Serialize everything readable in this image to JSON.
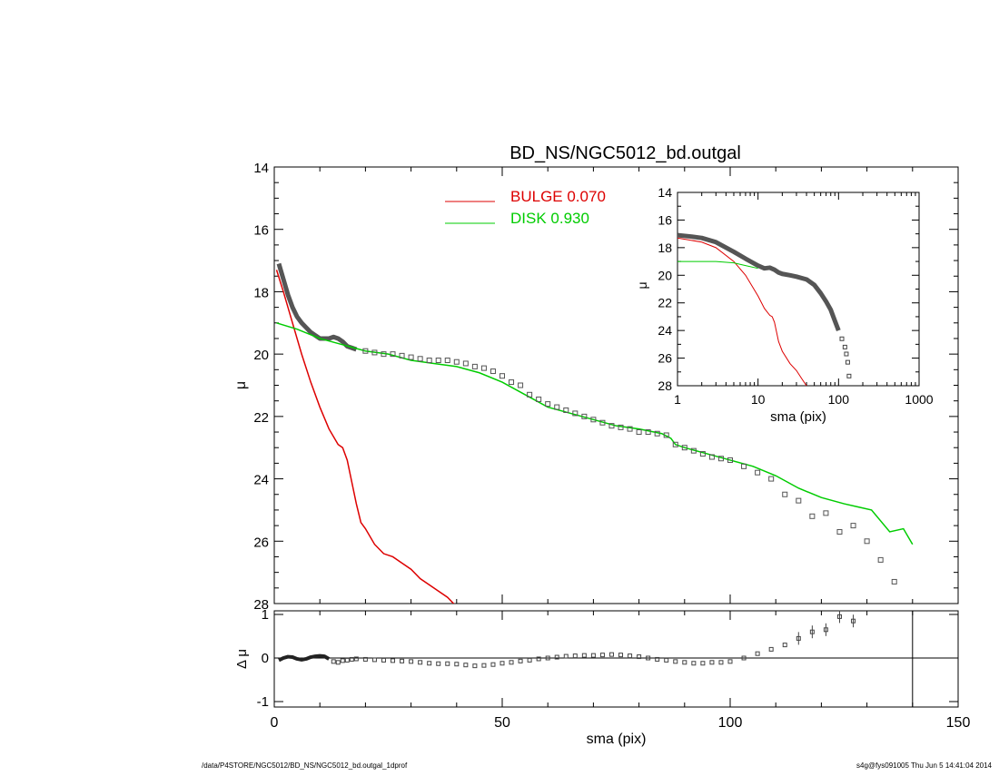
{
  "chart_data": [
    {
      "type": "line",
      "title": "BD_NS/NGC5012_bd.outgal",
      "xlabel": "",
      "ylabel": "μ",
      "xlim": [
        0,
        150
      ],
      "ylim": [
        14,
        28
      ],
      "y_reversed": true,
      "yticks": [
        "14",
        "16",
        "18",
        "20",
        "22",
        "24",
        "26",
        "28"
      ],
      "legend": {
        "placement": "top-center",
        "entries": [
          {
            "label": "BULGE  0.070",
            "color": "#dd0000"
          },
          {
            "label": "DISK  0.930",
            "color": "#00cc00"
          }
        ]
      },
      "series": [
        {
          "name": "BULGE",
          "color": "#dd0000",
          "x": [
            0.5,
            2,
            4,
            6,
            8,
            10,
            12,
            14,
            15,
            16,
            17,
            18,
            19,
            20,
            22,
            24,
            26,
            28,
            30,
            32,
            34,
            36,
            38,
            40
          ],
          "y": [
            17.3,
            18.0,
            19.0,
            20.0,
            20.9,
            21.7,
            22.4,
            22.9,
            23.0,
            23.4,
            24.1,
            24.8,
            25.4,
            25.6,
            26.1,
            26.4,
            26.5,
            26.7,
            26.9,
            27.2,
            27.4,
            27.6,
            27.8,
            28.1
          ]
        },
        {
          "name": "DISK",
          "color": "#00cc00",
          "x": [
            0.5,
            5,
            10,
            15,
            20,
            25,
            30,
            35,
            40,
            45,
            50,
            55,
            60,
            65,
            70,
            75,
            80,
            85,
            87,
            88,
            90,
            95,
            100,
            105,
            110,
            115,
            120,
            125,
            128,
            131,
            135,
            138,
            140
          ],
          "y": [
            19.0,
            19.2,
            19.5,
            19.7,
            19.9,
            20.0,
            20.2,
            20.3,
            20.4,
            20.6,
            20.9,
            21.3,
            21.7,
            21.9,
            22.1,
            22.3,
            22.4,
            22.55,
            22.7,
            22.9,
            23.0,
            23.2,
            23.4,
            23.6,
            23.9,
            24.3,
            24.6,
            24.8,
            24.9,
            25.0,
            25.7,
            25.6,
            26.1
          ]
        },
        {
          "name": "data",
          "color": "#555555",
          "marker": "square",
          "x": [
            1,
            2,
            3,
            4,
            5,
            6,
            7,
            8,
            9,
            10,
            11,
            12,
            13,
            14,
            15,
            16,
            17,
            18,
            20,
            22,
            24,
            26,
            28,
            30,
            32,
            34,
            36,
            38,
            40,
            42,
            44,
            46,
            48,
            50,
            52,
            54,
            56,
            58,
            60,
            62,
            64,
            66,
            68,
            70,
            72,
            74,
            76,
            78,
            80,
            82,
            84,
            86,
            88,
            90,
            92,
            94,
            96,
            98,
            100,
            103,
            106,
            109,
            112,
            115,
            118,
            121,
            124,
            127,
            130,
            133,
            136
          ],
          "y": [
            17.1,
            17.6,
            18.1,
            18.5,
            18.8,
            19.0,
            19.15,
            19.3,
            19.4,
            19.5,
            19.5,
            19.5,
            19.45,
            19.5,
            19.6,
            19.75,
            19.8,
            19.85,
            19.9,
            19.95,
            20.0,
            20.0,
            20.05,
            20.1,
            20.15,
            20.2,
            20.2,
            20.2,
            20.25,
            20.3,
            20.4,
            20.45,
            20.55,
            20.7,
            20.9,
            21.0,
            21.3,
            21.45,
            21.6,
            21.7,
            21.8,
            21.9,
            22.0,
            22.1,
            22.2,
            22.3,
            22.35,
            22.4,
            22.5,
            22.5,
            22.55,
            22.6,
            22.9,
            23.0,
            23.1,
            23.2,
            23.3,
            23.35,
            23.4,
            23.6,
            23.8,
            24.0,
            24.5,
            24.7,
            25.2,
            25.1,
            25.7,
            25.5,
            26.0,
            26.6,
            27.3
          ]
        }
      ]
    },
    {
      "type": "line",
      "xscale": "log",
      "xlabel": "sma (pix)",
      "ylabel": "μ",
      "xlim": [
        1,
        1000
      ],
      "ylim": [
        14,
        28
      ],
      "y_reversed": true,
      "xticks": [
        "1",
        "10",
        "100",
        "1000"
      ],
      "yticks": [
        "14",
        "16",
        "18",
        "20",
        "22",
        "24",
        "26",
        "28"
      ],
      "series": [
        {
          "name": "BULGE",
          "color": "#dd0000",
          "x": [
            1,
            2,
            3,
            5,
            7,
            10,
            12,
            14,
            15,
            16,
            18,
            20,
            25,
            30,
            35,
            40
          ],
          "y": [
            17.3,
            17.6,
            18.0,
            19.0,
            20.0,
            21.5,
            22.4,
            22.9,
            23.0,
            23.4,
            24.8,
            25.5,
            26.4,
            26.9,
            27.5,
            28.0
          ]
        },
        {
          "name": "DISK",
          "color": "#00cc00",
          "x": [
            1,
            2,
            3,
            5,
            7,
            10
          ],
          "y": [
            19.0,
            19.0,
            19.0,
            19.1,
            19.3,
            19.5
          ]
        },
        {
          "name": "data",
          "color": "#444444",
          "marker": "square",
          "x": [
            1,
            1.5,
            2,
            3,
            4,
            5,
            7,
            10,
            12,
            14,
            16,
            18,
            20,
            25,
            30,
            40,
            50,
            60,
            70,
            80,
            90,
            100,
            110,
            120,
            125,
            130,
            135
          ],
          "y": [
            17.1,
            17.2,
            17.3,
            17.6,
            18.0,
            18.3,
            18.8,
            19.3,
            19.5,
            19.45,
            19.6,
            19.8,
            19.9,
            20.0,
            20.1,
            20.3,
            20.7,
            21.3,
            21.9,
            22.5,
            23.3,
            24.0,
            24.6,
            25.2,
            25.7,
            26.3,
            27.3
          ]
        }
      ]
    },
    {
      "type": "scatter",
      "xlabel": "sma (pix)",
      "ylabel": "Δ μ",
      "xlim": [
        0,
        150
      ],
      "ylim": [
        -1,
        1
      ],
      "xticks": [
        "0",
        "50",
        "100",
        "150"
      ],
      "yticks": [
        "-1",
        "0",
        "1"
      ],
      "vline_x": 140,
      "series": [
        {
          "name": "residual",
          "color": "#444444",
          "marker": "square",
          "x": [
            1,
            2,
            3,
            4,
            5,
            6,
            7,
            8,
            9,
            10,
            11,
            12,
            13,
            14,
            15,
            16,
            17,
            18,
            20,
            22,
            24,
            26,
            28,
            30,
            32,
            34,
            36,
            38,
            40,
            42,
            44,
            46,
            48,
            50,
            52,
            54,
            56,
            58,
            60,
            62,
            64,
            66,
            68,
            70,
            72,
            74,
            76,
            78,
            80,
            82,
            84,
            86,
            88,
            90,
            92,
            94,
            96,
            98,
            100,
            103,
            106,
            109,
            112,
            115,
            118,
            121,
            124,
            127
          ],
          "y": [
            -0.05,
            0.0,
            0.03,
            0.02,
            -0.02,
            -0.04,
            -0.02,
            0.02,
            0.04,
            0.05,
            0.04,
            -0.02,
            -0.08,
            -0.1,
            -0.06,
            -0.05,
            -0.03,
            -0.02,
            -0.03,
            -0.04,
            -0.05,
            -0.06,
            -0.07,
            -0.08,
            -0.1,
            -0.12,
            -0.13,
            -0.13,
            -0.14,
            -0.16,
            -0.18,
            -0.17,
            -0.15,
            -0.12,
            -0.1,
            -0.07,
            -0.05,
            -0.02,
            0.0,
            0.02,
            0.04,
            0.05,
            0.06,
            0.06,
            0.07,
            0.08,
            0.07,
            0.05,
            0.03,
            0.0,
            -0.03,
            -0.05,
            -0.08,
            -0.1,
            -0.12,
            -0.12,
            -0.1,
            -0.1,
            -0.08,
            0.0,
            0.1,
            0.2,
            0.3,
            0.45,
            0.6,
            0.65,
            0.95,
            0.85
          ]
        }
      ]
    }
  ],
  "footer": {
    "left": "/data/P4STORE/NGC5012/BD_NS/NGC5012_bd.outgal_1dprof",
    "right": "s4g@fys091005  Thu Jun  5 14:41:04 2014"
  }
}
